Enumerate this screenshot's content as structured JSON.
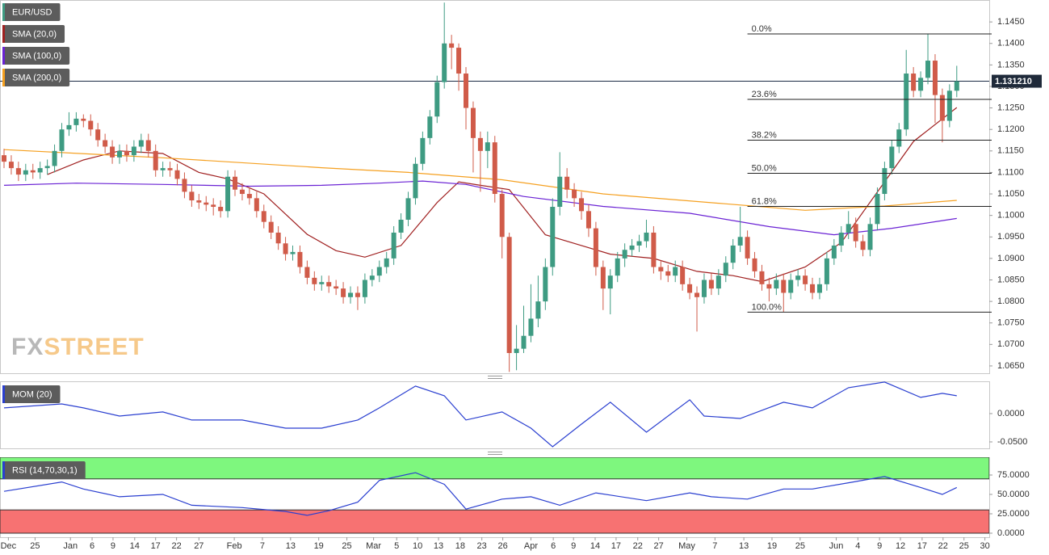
{
  "chart_data": [
    {
      "type": "candlestick",
      "name": "EUR/USD",
      "up_color": "#3e9b82",
      "down_color": "#d05b49",
      "open": [
        1.114,
        1.1125,
        1.111,
        1.1095,
        1.1105,
        1.11,
        1.111,
        1.1115,
        1.115,
        1.12,
        1.121,
        1.1225,
        1.122,
        1.12,
        1.1175,
        1.116,
        1.1135,
        1.115,
        1.114,
        1.116,
        1.1175,
        1.115,
        1.1105,
        1.111,
        1.1105,
        1.1085,
        1.1055,
        1.1035,
        1.103,
        1.1025,
        1.102,
        1.101,
        1.109,
        1.106,
        1.105,
        1.104,
        1.101,
        1.0985,
        1.096,
        1.0935,
        1.091,
        1.0915,
        1.088,
        1.0855,
        1.084,
        1.0845,
        1.0835,
        1.083,
        1.081,
        1.082,
        1.081,
        1.085,
        1.086,
        1.088,
        1.09,
        1.096,
        1.099,
        1.104,
        1.112,
        1.118,
        1.123,
        1.131,
        1.14,
        1.139,
        1.133,
        1.125,
        1.118,
        1.115,
        1.117,
        1.105,
        1.095,
        1.068,
        1.069,
        1.072,
        1.076,
        1.08,
        1.088,
        1.102,
        1.109,
        1.106,
        1.104,
        1.101,
        1.097,
        1.088,
        1.083,
        1.086,
        1.09,
        1.092,
        1.093,
        1.094,
        1.096,
        1.088,
        1.087,
        1.086,
        1.088,
        1.084,
        1.082,
        1.081,
        1.085,
        1.083,
        1.086,
        1.089,
        1.093,
        1.095,
        1.09,
        1.087,
        1.084,
        1.083,
        1.085,
        1.082,
        1.085,
        1.086,
        1.084,
        1.082,
        1.084,
        1.09,
        1.093,
        1.096,
        1.098,
        1.094,
        1.092,
        1.098,
        1.105,
        1.111,
        1.116,
        1.12,
        1.133,
        1.129,
        1.132,
        1.136,
        1.128,
        1.122,
        1.129
      ],
      "high": [
        1.1155,
        1.114,
        1.1125,
        1.112,
        1.112,
        1.1125,
        1.113,
        1.1165,
        1.1215,
        1.124,
        1.124,
        1.1235,
        1.1235,
        1.1215,
        1.119,
        1.1175,
        1.1165,
        1.1165,
        1.1175,
        1.119,
        1.119,
        1.1165,
        1.1125,
        1.1125,
        1.112,
        1.11,
        1.107,
        1.105,
        1.1045,
        1.104,
        1.1035,
        1.1105,
        1.1105,
        1.1075,
        1.1065,
        1.1055,
        1.1025,
        1.1,
        1.0975,
        1.095,
        1.093,
        1.093,
        1.0895,
        1.087,
        1.086,
        1.086,
        1.085,
        1.0845,
        1.0835,
        1.0835,
        1.0865,
        1.0875,
        1.0895,
        1.0915,
        1.0975,
        1.1005,
        1.1055,
        1.1135,
        1.1195,
        1.1245,
        1.1325,
        1.1495,
        1.142,
        1.14,
        1.1345,
        1.1265,
        1.1195,
        1.1195,
        1.1185,
        1.106,
        1.096,
        1.0745,
        1.079,
        1.084,
        1.086,
        1.09,
        1.104,
        1.1147,
        1.111,
        1.1075,
        1.1055,
        1.1025,
        1.0985,
        1.0895,
        1.0875,
        1.0915,
        1.0935,
        1.0945,
        1.0955,
        1.099,
        1.0975,
        1.0895,
        1.0885,
        1.0895,
        1.0895,
        1.0855,
        1.0835,
        1.0865,
        1.0865,
        1.0875,
        1.0905,
        1.0945,
        1.102,
        1.0965,
        1.0915,
        1.0885,
        1.0855,
        1.0865,
        1.0865,
        1.0865,
        1.0875,
        1.0875,
        1.0855,
        1.0855,
        1.0915,
        1.0945,
        1.0975,
        1.101,
        1.0995,
        1.0955,
        1.0995,
        1.1065,
        1.1125,
        1.1175,
        1.1215,
        1.1385,
        1.1345,
        1.1335,
        1.1422,
        1.1375,
        1.1295,
        1.1305,
        1.1348
      ],
      "low": [
        1.111,
        1.1095,
        1.108,
        1.108,
        1.1085,
        1.1085,
        1.1095,
        1.11,
        1.1135,
        1.1185,
        1.1195,
        1.1205,
        1.1185,
        1.116,
        1.1145,
        1.112,
        1.112,
        1.1125,
        1.1125,
        1.1145,
        1.1135,
        1.109,
        1.109,
        1.109,
        1.107,
        1.104,
        1.102,
        1.1015,
        1.101,
        1.1,
        1.0995,
        1.0995,
        1.1045,
        1.1035,
        1.1025,
        1.0995,
        1.097,
        1.0945,
        1.092,
        1.0895,
        1.0895,
        1.0865,
        1.084,
        1.0825,
        1.0825,
        1.082,
        1.0815,
        1.0795,
        1.0795,
        1.078,
        1.0795,
        1.0835,
        1.0845,
        1.0865,
        1.0885,
        1.0945,
        1.0975,
        1.1025,
        1.1105,
        1.1165,
        1.1215,
        1.1295,
        1.134,
        1.129,
        1.12,
        1.11,
        1.1055,
        1.111,
        1.103,
        1.09,
        1.0636,
        1.064,
        1.068,
        1.0705,
        1.074,
        1.078,
        1.086,
        1.1,
        1.104,
        1.102,
        1.099,
        1.095,
        1.086,
        1.078,
        1.077,
        1.0845,
        1.088,
        1.0905,
        1.0915,
        1.0925,
        1.0865,
        1.085,
        1.0845,
        1.0845,
        1.0825,
        1.0805,
        1.073,
        1.0795,
        1.0815,
        1.0815,
        1.0845,
        1.0875,
        1.0915,
        1.0885,
        1.0855,
        1.0825,
        1.08,
        1.0815,
        1.0775,
        1.0805,
        1.0835,
        1.0825,
        1.0805,
        1.0805,
        1.0825,
        1.0885,
        1.0915,
        1.0945,
        1.0925,
        1.0905,
        1.0905,
        1.0965,
        1.1035,
        1.1095,
        1.1145,
        1.1185,
        1.1275,
        1.1275,
        1.1305,
        1.1215,
        1.117,
        1.1205,
        1.1275
      ],
      "close": [
        1.1125,
        1.111,
        1.1095,
        1.1105,
        1.11,
        1.111,
        1.1115,
        1.115,
        1.12,
        1.121,
        1.1225,
        1.122,
        1.12,
        1.1175,
        1.116,
        1.1135,
        1.115,
        1.114,
        1.116,
        1.1175,
        1.115,
        1.1105,
        1.111,
        1.1105,
        1.1085,
        1.1055,
        1.1035,
        1.103,
        1.1025,
        1.102,
        1.101,
        1.109,
        1.106,
        1.105,
        1.104,
        1.101,
        1.0985,
        1.096,
        1.0935,
        1.091,
        1.0915,
        1.088,
        1.0855,
        1.084,
        1.0845,
        1.0835,
        1.083,
        1.081,
        1.082,
        1.081,
        1.085,
        1.086,
        1.088,
        1.09,
        1.096,
        1.099,
        1.104,
        1.112,
        1.118,
        1.123,
        1.131,
        1.14,
        1.139,
        1.133,
        1.125,
        1.118,
        1.115,
        1.117,
        1.105,
        1.095,
        1.068,
        1.069,
        1.072,
        1.076,
        1.08,
        1.088,
        1.102,
        1.109,
        1.106,
        1.104,
        1.101,
        1.097,
        1.088,
        1.083,
        1.086,
        1.09,
        1.092,
        1.093,
        1.094,
        1.096,
        1.088,
        1.087,
        1.086,
        1.088,
        1.084,
        1.082,
        1.081,
        1.085,
        1.083,
        1.086,
        1.089,
        1.093,
        1.095,
        1.09,
        1.087,
        1.084,
        1.083,
        1.085,
        1.082,
        1.085,
        1.086,
        1.084,
        1.082,
        1.084,
        1.09,
        1.093,
        1.096,
        1.098,
        1.094,
        1.092,
        1.098,
        1.105,
        1.111,
        1.116,
        1.12,
        1.133,
        1.129,
        1.132,
        1.136,
        1.128,
        1.122,
        1.129,
        1.1312
      ],
      "overlays": [
        {
          "name": "SMA (20,0)",
          "color": "#a02020",
          "x": [
            6,
            11,
            16,
            22,
            27,
            31,
            36,
            42,
            46,
            50,
            55,
            60,
            63,
            66,
            70,
            75,
            80,
            84,
            90,
            96,
            101,
            105,
            111,
            116,
            122,
            126,
            132
          ],
          "values": [
            1.1095,
            1.1129,
            1.115,
            1.1144,
            1.11,
            1.1085,
            1.105,
            1.0956,
            1.0918,
            1.0903,
            1.093,
            1.103,
            1.1078,
            1.107,
            1.106,
            1.0955,
            1.093,
            1.091,
            1.09,
            1.087,
            1.086,
            1.0846,
            1.088,
            1.0937,
            1.1078,
            1.1172,
            1.1251
          ]
        },
        {
          "name": "SMA (100,0)",
          "color": "#6a22d4",
          "x": [
            0,
            10,
            22,
            34,
            44,
            52,
            58,
            64,
            72,
            83,
            95,
            106,
            115,
            123,
            132
          ],
          "values": [
            1.107,
            1.1075,
            1.1072,
            1.1068,
            1.107,
            1.1075,
            1.108,
            1.1072,
            1.1044,
            1.1021,
            1.1005,
            1.0974,
            1.0955,
            1.097,
            1.0993
          ]
        },
        {
          "name": "SMA (200,0)",
          "color": "#f5a020",
          "x": [
            0,
            22,
            44,
            56,
            69,
            83,
            100,
            111,
            122,
            132
          ],
          "values": [
            1.1153,
            1.1134,
            1.1111,
            1.11,
            1.1083,
            1.105,
            1.1027,
            1.1012,
            1.1022,
            1.1035
          ]
        }
      ],
      "fibonacci": [
        {
          "label": "0.0%",
          "value": 1.1422
        },
        {
          "label": "23.6%",
          "value": 1.127
        },
        {
          "label": "38.2%",
          "value": 1.1175
        },
        {
          "label": "50.0%",
          "value": 1.1098
        },
        {
          "label": "61.8%",
          "value": 1.1021
        },
        {
          "label": "100.0%",
          "value": 1.0775
        }
      ],
      "last_price": {
        "value": 1.13121,
        "label": "1.131210"
      },
      "watermark": [
        "FX",
        "STREET"
      ],
      "xlim": [
        -0.56,
        136.5
      ],
      "xticks": [
        {
          "value": 0.6,
          "label": "Dec"
        },
        {
          "value": 4.3,
          "label": "25"
        },
        {
          "value": 9.2,
          "label": "Jan"
        },
        {
          "value": 12.2,
          "label": "6"
        },
        {
          "value": 15.1,
          "label": "9"
        },
        {
          "value": 18.1,
          "label": "14"
        },
        {
          "value": 21,
          "label": "17"
        },
        {
          "value": 23.9,
          "label": "22"
        },
        {
          "value": 27,
          "label": "27"
        },
        {
          "value": 31.9,
          "label": "Feb"
        },
        {
          "value": 35.8,
          "label": "7"
        },
        {
          "value": 39.7,
          "label": "13"
        },
        {
          "value": 43.6,
          "label": "19"
        },
        {
          "value": 47.5,
          "label": "25"
        },
        {
          "value": 51.2,
          "label": "Mar"
        },
        {
          "value": 54.4,
          "label": "5"
        },
        {
          "value": 57.3,
          "label": "10"
        },
        {
          "value": 60.2,
          "label": "13"
        },
        {
          "value": 63.2,
          "label": "18"
        },
        {
          "value": 66.2,
          "label": "23"
        },
        {
          "value": 69.1,
          "label": "26"
        },
        {
          "value": 73,
          "label": "Apr"
        },
        {
          "value": 76.1,
          "label": "6"
        },
        {
          "value": 78.9,
          "label": "9"
        },
        {
          "value": 81.9,
          "label": "14"
        },
        {
          "value": 84.8,
          "label": "17"
        },
        {
          "value": 87.8,
          "label": "22"
        },
        {
          "value": 90.7,
          "label": "27"
        },
        {
          "value": 94.6,
          "label": "May"
        },
        {
          "value": 98.5,
          "label": "7"
        },
        {
          "value": 102.5,
          "label": "13"
        },
        {
          "value": 106.4,
          "label": "19"
        },
        {
          "value": 110.3,
          "label": "25"
        },
        {
          "value": 115.3,
          "label": "Jun"
        },
        {
          "value": 118.3,
          "label": "4"
        },
        {
          "value": 121.3,
          "label": "9"
        },
        {
          "value": 124.2,
          "label": "12"
        },
        {
          "value": 127.2,
          "label": "17"
        },
        {
          "value": 130.1,
          "label": "22"
        },
        {
          "value": 133,
          "label": "25"
        },
        {
          "value": 135.9,
          "label": "30"
        }
      ],
      "ylim": [
        1.0633,
        1.1501
      ],
      "yticks": [
        {
          "value": 1.065,
          "label": "1.0650"
        },
        {
          "value": 1.07,
          "label": "1.0700"
        },
        {
          "value": 1.075,
          "label": "1.0750"
        },
        {
          "value": 1.08,
          "label": "1.0800"
        },
        {
          "value": 1.085,
          "label": "1.0850"
        },
        {
          "value": 1.09,
          "label": "1.0900"
        },
        {
          "value": 1.095,
          "label": "1.0950"
        },
        {
          "value": 1.1,
          "label": "1.1000"
        },
        {
          "value": 1.105,
          "label": "1.1050"
        },
        {
          "value": 1.11,
          "label": "1.1100"
        },
        {
          "value": 1.115,
          "label": "1.1150"
        },
        {
          "value": 1.12,
          "label": "1.1200"
        },
        {
          "value": 1.125,
          "label": "1.1250"
        },
        {
          "value": 1.13,
          "label": "1.1300"
        },
        {
          "value": 1.135,
          "label": "1.1350"
        },
        {
          "value": 1.14,
          "label": "1.1400"
        },
        {
          "value": 1.145,
          "label": "1.1450"
        }
      ]
    },
    {
      "type": "line",
      "series": [
        {
          "name": "MOM (20)",
          "color": "#2a3fd0",
          "x": [
            0,
            8,
            11,
            16,
            22,
            26,
            33,
            39,
            44,
            49,
            52,
            57,
            61,
            64,
            69,
            73,
            76,
            80,
            84,
            89,
            95,
            97,
            102,
            108,
            112,
            117,
            122,
            127,
            130,
            132
          ],
          "values": [
            0.01,
            0.0171,
            0.01,
            -0.0043,
            0.0029,
            -0.0114,
            -0.0114,
            -0.0257,
            -0.0257,
            -0.0114,
            0.01,
            0.0486,
            0.0314,
            -0.0114,
            0.0029,
            -0.0257,
            -0.0586,
            -0.0186,
            0.02,
            -0.0329,
            0.0243,
            -0.0043,
            -0.0086,
            0.02,
            0.01,
            0.0457,
            0.0557,
            0.0286,
            0.0357,
            0.0314
          ]
        }
      ],
      "ylim": [
        -0.0614,
        0.057
      ],
      "yticks": [
        {
          "value": -0.05,
          "label": "-0.0500"
        },
        {
          "value": 0,
          "label": "0.0000"
        }
      ]
    },
    {
      "type": "line",
      "overbought": 70,
      "oversold": 30,
      "overbought_color": "#7ef77e",
      "oversold_color": "#f77272",
      "series": [
        {
          "name": "RSI (14,70,30,1)",
          "color": "#2a3fd0",
          "x": [
            0,
            8,
            11,
            16,
            22,
            26,
            33,
            39,
            42,
            45,
            49,
            52,
            57,
            61,
            64,
            69,
            73,
            77,
            82,
            89,
            95,
            98,
            103,
            108,
            112,
            117,
            122,
            127,
            130,
            132
          ],
          "values": [
            54,
            66,
            57,
            47,
            50,
            36,
            33,
            28,
            23,
            29,
            40,
            68,
            78,
            63,
            31,
            44,
            47,
            36,
            52,
            42,
            52,
            47,
            44,
            57,
            57,
            65,
            73,
            59,
            50,
            59
          ]
        }
      ],
      "ylim": [
        -5.2,
        97.9
      ],
      "yticks": [
        {
          "value": 0,
          "label": "0.0000"
        },
        {
          "value": 25,
          "label": "25.0000"
        },
        {
          "value": 50,
          "label": "50.0000"
        },
        {
          "value": 75,
          "label": "75.0000"
        }
      ]
    }
  ]
}
